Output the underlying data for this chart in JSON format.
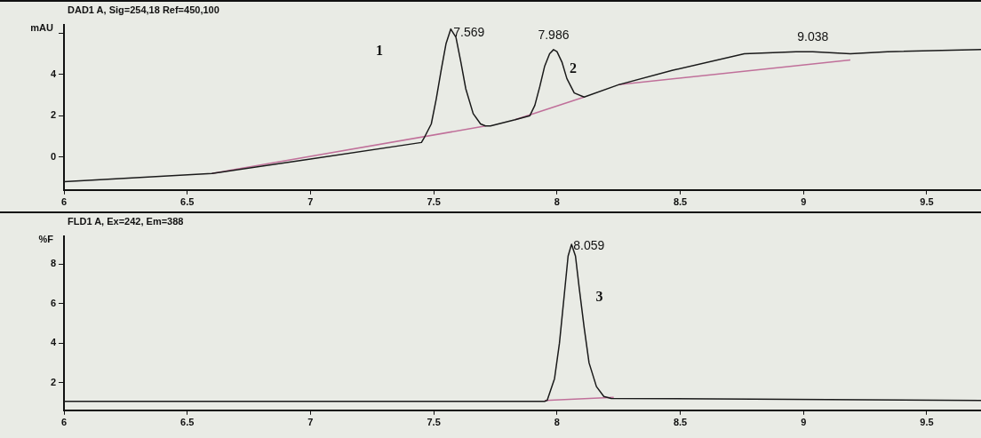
{
  "chart_data": [
    {
      "type": "line",
      "title": "DAD1 A, Sig=254,18 Ref=450,100",
      "ylabel": "mAU",
      "xlim": [
        6,
        9.72
      ],
      "xticks": [
        6,
        6.5,
        7,
        7.5,
        8,
        8.5,
        9,
        9.5
      ],
      "ylim": [
        -1.6,
        6.4
      ],
      "yticks": [
        0,
        2,
        4,
        {
          "value": 6,
          "label": null
        }
      ],
      "grid": false,
      "legend": false,
      "marker": "none",
      "series": [
        {
          "color": "#1a1a1a",
          "x": [
            6.0,
            6.6,
            7.0,
            7.45,
            7.46,
            7.49,
            7.51,
            7.53,
            7.55,
            7.569,
            7.59,
            7.61,
            7.63,
            7.66,
            7.69,
            7.71,
            7.73,
            7.83,
            7.89,
            7.91,
            7.93,
            7.95,
            7.97,
            7.986,
            8.0,
            8.02,
            8.04,
            8.07,
            8.11,
            8.25,
            8.47,
            8.76,
            8.97,
            9.038,
            9.19,
            9.34,
            9.72
          ],
          "values": [
            -1.2,
            -0.8,
            -0.1,
            0.7,
            0.9,
            1.6,
            2.8,
            4.2,
            5.5,
            6.2,
            5.8,
            4.6,
            3.3,
            2.1,
            1.6,
            1.5,
            1.5,
            1.8,
            2.0,
            2.5,
            3.4,
            4.4,
            5.0,
            5.2,
            5.1,
            4.6,
            3.8,
            3.1,
            2.9,
            3.5,
            4.2,
            5.0,
            5.1,
            5.1,
            5.0,
            5.1,
            5.2
          ]
        },
        {
          "color": "#c0709a",
          "x": [
            6.6,
            7.71
          ],
          "values": [
            -0.8,
            1.5
          ]
        },
        {
          "color": "#c0709a",
          "x": [
            7.83,
            8.11
          ],
          "values": [
            1.8,
            2.9
          ]
        },
        {
          "color": "#c0709a",
          "x": [
            8.25,
            9.19
          ],
          "values": [
            3.5,
            4.7
          ]
        }
      ],
      "annotations": [
        {
          "text": "7.569",
          "x": 7.569,
          "y": 6.2
        },
        {
          "text": "7.986",
          "x": 7.986,
          "y": 5.2
        },
        {
          "text": "9.038",
          "x": 9.038,
          "y": 5.1
        },
        "1",
        {
          "text": "2",
          "x": 7.986,
          "y": 5.2
        }
      ]
    },
    {
      "type": "line",
      "title": "FLD1 A, Ex=242, Em=388",
      "ylabel": "%F",
      "xlim": [
        6,
        9.72
      ],
      "xticks": [
        6,
        6.5,
        7,
        7.5,
        8,
        8.5,
        9,
        9.5
      ],
      "ylim": [
        0.6,
        9.4
      ],
      "yticks": [
        2,
        4,
        6,
        8
      ],
      "grid": false,
      "legend": false,
      "marker": "none",
      "series": [
        {
          "color": "#1a1a1a",
          "x": [
            6.0,
            7.95,
            7.96,
            7.99,
            8.01,
            8.03,
            8.045,
            8.059,
            8.075,
            8.09,
            8.11,
            8.13,
            8.16,
            8.19,
            8.22,
            9.72
          ],
          "values": [
            1.05,
            1.05,
            1.1,
            2.2,
            4.0,
            6.5,
            8.4,
            9.0,
            8.4,
            6.8,
            4.8,
            3.0,
            1.8,
            1.3,
            1.2,
            1.1
          ]
        },
        {
          "color": "#c0709a",
          "x": [
            7.95,
            8.23
          ],
          "values": [
            1.1,
            1.25
          ]
        }
      ],
      "annotations": [
        {
          "text": "8.059",
          "x": 8.059,
          "y": 9.0
        },
        "3"
      ]
    }
  ]
}
